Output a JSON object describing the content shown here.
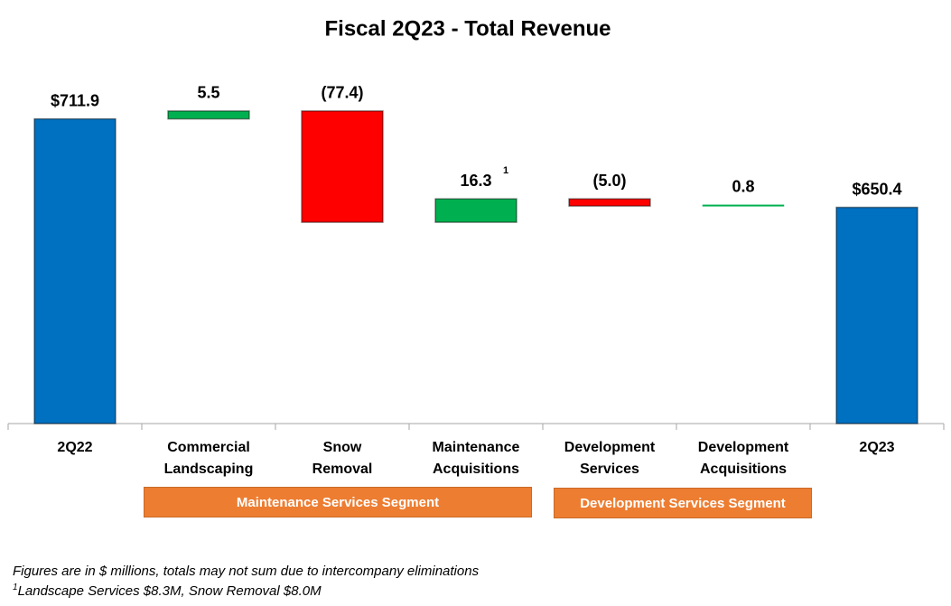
{
  "chart_data": {
    "type": "waterfall",
    "title": "Fiscal 2Q23 - Total Revenue",
    "categories": [
      "2Q22",
      "Commercial\nLandscaping",
      "Snow\nRemoval",
      "Maintenance\nAcquisitions",
      "Development\nServices",
      "Development\nAcquisitions",
      "2Q23"
    ],
    "measure": [
      "total",
      "relative",
      "relative",
      "relative",
      "relative",
      "relative",
      "total"
    ],
    "values": [
      711.9,
      5.5,
      -77.4,
      16.3,
      -5.0,
      0.8,
      650.4
    ],
    "value_labels": [
      "$711.9",
      "5.5",
      "(77.4)",
      "16.3",
      "(5.0)",
      "0.8",
      "$650.4"
    ],
    "colors": {
      "total": "#0070c0",
      "increase": "#00b050",
      "decrease": "#ff0000"
    },
    "ylim": [
      500,
      750
    ],
    "annotations": [
      {
        "text": "1"
      }
    ],
    "segments": [
      "Maintenance Services Segment",
      "Development Services Segment"
    ],
    "footnotes": [
      {
        "text": "Figures are in $ millions, totals may not sum due to intercompany eliminations"
      },
      {
        "marker": "1",
        "text": "Landscape Services $8.3M, Snow Removal $8.0M"
      }
    ]
  }
}
